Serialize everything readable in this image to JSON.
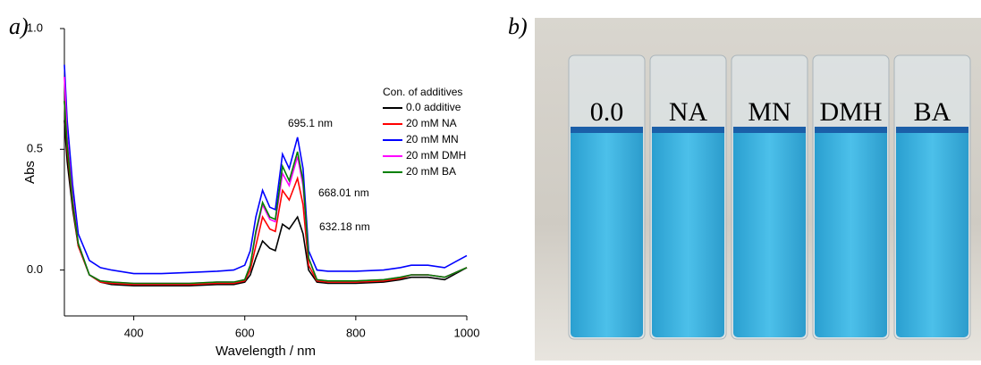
{
  "chart_data": {
    "type": "line",
    "panel_label": "a)",
    "xlabel": "Wavelength / nm",
    "ylabel": "Abs",
    "legend_title": "Con. of additives",
    "annotations": [
      "632.18 nm",
      "668.01 nm",
      "695.1 nm"
    ],
    "x": [
      275,
      280,
      290,
      300,
      320,
      340,
      360,
      400,
      450,
      500,
      550,
      580,
      600,
      610,
      620,
      632,
      645,
      655,
      668,
      680,
      695,
      705,
      715,
      730,
      750,
      800,
      850,
      880,
      900,
      930,
      960,
      1000
    ],
    "series": [
      {
        "name": "0.0 additive",
        "color": "#000000",
        "values": [
          0.62,
          0.45,
          0.25,
          0.1,
          -0.02,
          -0.05,
          -0.06,
          -0.065,
          -0.065,
          -0.065,
          -0.06,
          -0.06,
          -0.05,
          -0.02,
          0.05,
          0.12,
          0.09,
          0.08,
          0.19,
          0.17,
          0.22,
          0.15,
          0.0,
          -0.05,
          -0.055,
          -0.055,
          -0.05,
          -0.04,
          -0.03,
          -0.03,
          -0.04,
          0.01
        ]
      },
      {
        "name": "20  mM NA",
        "color": "#ff0000",
        "values": [
          0.7,
          0.5,
          0.27,
          0.1,
          -0.02,
          -0.05,
          -0.055,
          -0.06,
          -0.06,
          -0.06,
          -0.055,
          -0.055,
          -0.045,
          0.0,
          0.1,
          0.22,
          0.17,
          0.16,
          0.33,
          0.29,
          0.38,
          0.27,
          0.02,
          -0.045,
          -0.05,
          -0.05,
          -0.045,
          -0.035,
          -0.02,
          -0.02,
          -0.03,
          0.01
        ]
      },
      {
        "name": "20  mM MN",
        "color": "#0000ff",
        "values": [
          0.85,
          0.62,
          0.35,
          0.15,
          0.04,
          0.01,
          0.0,
          -0.015,
          -0.015,
          -0.01,
          -0.005,
          0.0,
          0.02,
          0.08,
          0.22,
          0.33,
          0.26,
          0.25,
          0.48,
          0.42,
          0.55,
          0.42,
          0.08,
          0.0,
          -0.005,
          -0.005,
          0.0,
          0.01,
          0.02,
          0.02,
          0.01,
          0.06
        ]
      },
      {
        "name": "20  mM DMH",
        "color": "#ff00ff",
        "values": [
          0.8,
          0.55,
          0.3,
          0.11,
          -0.02,
          -0.045,
          -0.05,
          -0.055,
          -0.055,
          -0.055,
          -0.05,
          -0.05,
          -0.04,
          0.02,
          0.15,
          0.27,
          0.21,
          0.2,
          0.4,
          0.35,
          0.47,
          0.35,
          0.05,
          -0.04,
          -0.045,
          -0.045,
          -0.04,
          -0.03,
          -0.02,
          -0.02,
          -0.03,
          0.01
        ]
      },
      {
        "name": "20  mM BA",
        "color": "#008000",
        "values": [
          0.7,
          0.52,
          0.28,
          0.11,
          -0.02,
          -0.045,
          -0.05,
          -0.055,
          -0.055,
          -0.055,
          -0.05,
          -0.05,
          -0.04,
          0.02,
          0.16,
          0.28,
          0.22,
          0.21,
          0.43,
          0.37,
          0.49,
          0.37,
          0.05,
          -0.04,
          -0.045,
          -0.045,
          -0.04,
          -0.03,
          -0.02,
          -0.02,
          -0.03,
          0.01
        ]
      }
    ],
    "xlim": [
      275,
      1000
    ],
    "xticks": [
      400,
      600,
      800,
      1000
    ],
    "ylim": [
      -0.19,
      1.0
    ],
    "yticks": [
      {
        "value": 0,
        "label": "0.0"
      },
      0.5,
      {
        "value": 1,
        "label": "1.0"
      }
    ],
    "grid": false
  },
  "photo": {
    "panel_label": "b)",
    "labels": [
      "0.0",
      "NA",
      "MN",
      "DMH",
      "BA"
    ]
  }
}
